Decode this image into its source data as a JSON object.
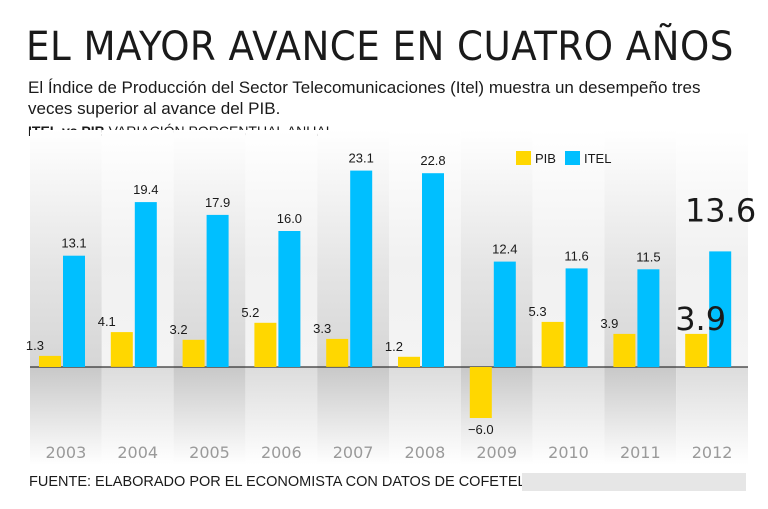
{
  "header": {
    "title": "EL MAYOR AVANCE EN CUATRO AÑOS",
    "subtitle": "El Índice de Producción del Sector Telecomunicaciones (Itel) muestra un desempeño tres veces superior al avance del PIB.",
    "chart_label_bold": "ITEL vs PIB",
    "chart_label_rest": " VARIACIÓN PORCENTUAL ANUAL"
  },
  "footer": {
    "source": "FUENTE: ELABORADO POR EL ECONOMISTA CON DATOS DE COFETEL"
  },
  "colors": {
    "pib": "#ffd700",
    "itel": "#00bfff",
    "band_dark": "#cfcfcf",
    "axis": "#333333"
  },
  "chart_data": {
    "type": "bar",
    "title": "ITEL vs PIB VARIACIÓN PORCENTUAL ANUAL",
    "xlabel": "",
    "ylabel": "",
    "ylim": [
      -6,
      23.1
    ],
    "grid": false,
    "legend_position": "top-right",
    "categories": [
      "2003",
      "2004",
      "2005",
      "2006",
      "2007",
      "2008",
      "2009",
      "2010",
      "2011",
      "2012"
    ],
    "series": [
      {
        "name": "PIB",
        "values": [
          1.3,
          4.1,
          3.2,
          5.2,
          3.3,
          1.2,
          -6.0,
          5.3,
          3.9,
          3.9
        ],
        "labels": [
          "1.3",
          "4.1",
          "3.2",
          "5.2",
          "3.3",
          "1.2",
          "−6.0",
          "5.3",
          "3.9",
          "3.9"
        ]
      },
      {
        "name": "ITEL",
        "values": [
          13.1,
          19.4,
          17.9,
          16.0,
          23.1,
          22.8,
          12.4,
          11.6,
          11.5,
          13.6
        ],
        "labels": [
          "13.1",
          "19.4",
          "17.9",
          "16.0",
          "23.1",
          "22.8",
          "12.4",
          "11.6",
          "11.5",
          "13.6"
        ]
      }
    ],
    "highlight_category": "2012"
  }
}
